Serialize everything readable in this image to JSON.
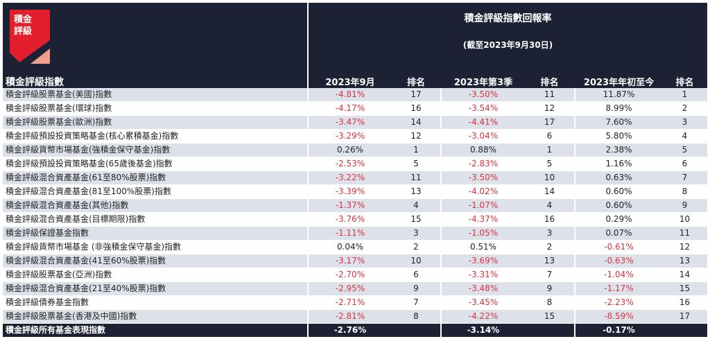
{
  "logo": {
    "text": "積金評級",
    "colors": [
      "#e31e2c",
      "#f0a08a"
    ]
  },
  "header": {
    "title": "積金評級指數回報率",
    "subtitle": "(截至2023年9月30日)",
    "index_col": "積金評級指數",
    "cols": [
      "2023年9月",
      "排名",
      "2023年第3季",
      "排名",
      "2023年年初至今",
      "排名"
    ]
  },
  "rows": [
    [
      "積金評級股票基金(美國)指數",
      "-4.81%",
      "17",
      "-3.50%",
      "11",
      "11.87%",
      "1"
    ],
    [
      "積金評級股票基金(環球)指數",
      "-4.17%",
      "16",
      "-3.54%",
      "12",
      "8.99%",
      "2"
    ],
    [
      "積金評級股票基金(歐洲)指數",
      "-3.47%",
      "14",
      "-4.41%",
      "17",
      "7.60%",
      "3"
    ],
    [
      "積金評級預設投資策略基金(核心累積基金)指數",
      "-3.29%",
      "12",
      "-3.04%",
      "6",
      "5.80%",
      "4"
    ],
    [
      "積金評級貨幣市場基金(強積金保守基金)指數",
      "0.26%",
      "1",
      "0.88%",
      "1",
      "2.38%",
      "5"
    ],
    [
      "積金評級預設投資策略基金(65歲後基金)指數",
      "-2.53%",
      "5",
      "-2.83%",
      "5",
      "1.16%",
      "6"
    ],
    [
      "積金評級混合資產基金(61至80%股票)指數",
      "-3.22%",
      "11",
      "-3.50%",
      "10",
      "0.63%",
      "7"
    ],
    [
      "積金評級混合資產基金(81至100%股票)指數",
      "-3.39%",
      "13",
      "-4.02%",
      "14",
      "0.60%",
      "8"
    ],
    [
      "積金評級混合資產基金(其他)指數",
      "-1.37%",
      "4",
      "-1.07%",
      "4",
      "0.60%",
      "9"
    ],
    [
      "積金評級混合資產基金(目標期限)指數",
      "-3.76%",
      "15",
      "-4.37%",
      "16",
      "0.29%",
      "10"
    ],
    [
      "積金評級保證基金指數",
      "-1.11%",
      "3",
      "-1.05%",
      "3",
      "0.07%",
      "11"
    ],
    [
      "積金評級貨幣市場基金 (非強積金保守基金)指數",
      "0.04%",
      "2",
      "0.51%",
      "2",
      "-0.61%",
      "12"
    ],
    [
      "積金評級混合資產基金(41至60%股票)指數",
      "-3.17%",
      "10",
      "-3.69%",
      "13",
      "-0.63%",
      "13"
    ],
    [
      "積金評級股票基金(亞洲)指數",
      "-2.70%",
      "6",
      "-3.31%",
      "7",
      "-1.04%",
      "14"
    ],
    [
      "積金評級混合資產基金(21至40%股票)指數",
      "-2.95%",
      "9",
      "-3.48%",
      "9",
      "-1.17%",
      "15"
    ],
    [
      "積金評級債券基金指數",
      "-2.71%",
      "7",
      "-3.45%",
      "8",
      "-2.23%",
      "16"
    ],
    [
      "積金評級股票基金(香港及中國)指數",
      "-2.81%",
      "8",
      "-4.22%",
      "15",
      "-8.59%",
      "17"
    ]
  ],
  "total": [
    "積金評級所有基金表現指數",
    "-2.76%",
    "-3.14%",
    "-0.17%"
  ],
  "colors": {
    "header_bg": "#1c2133",
    "stripe": "#dde1ea",
    "negative": "#d9333f"
  }
}
